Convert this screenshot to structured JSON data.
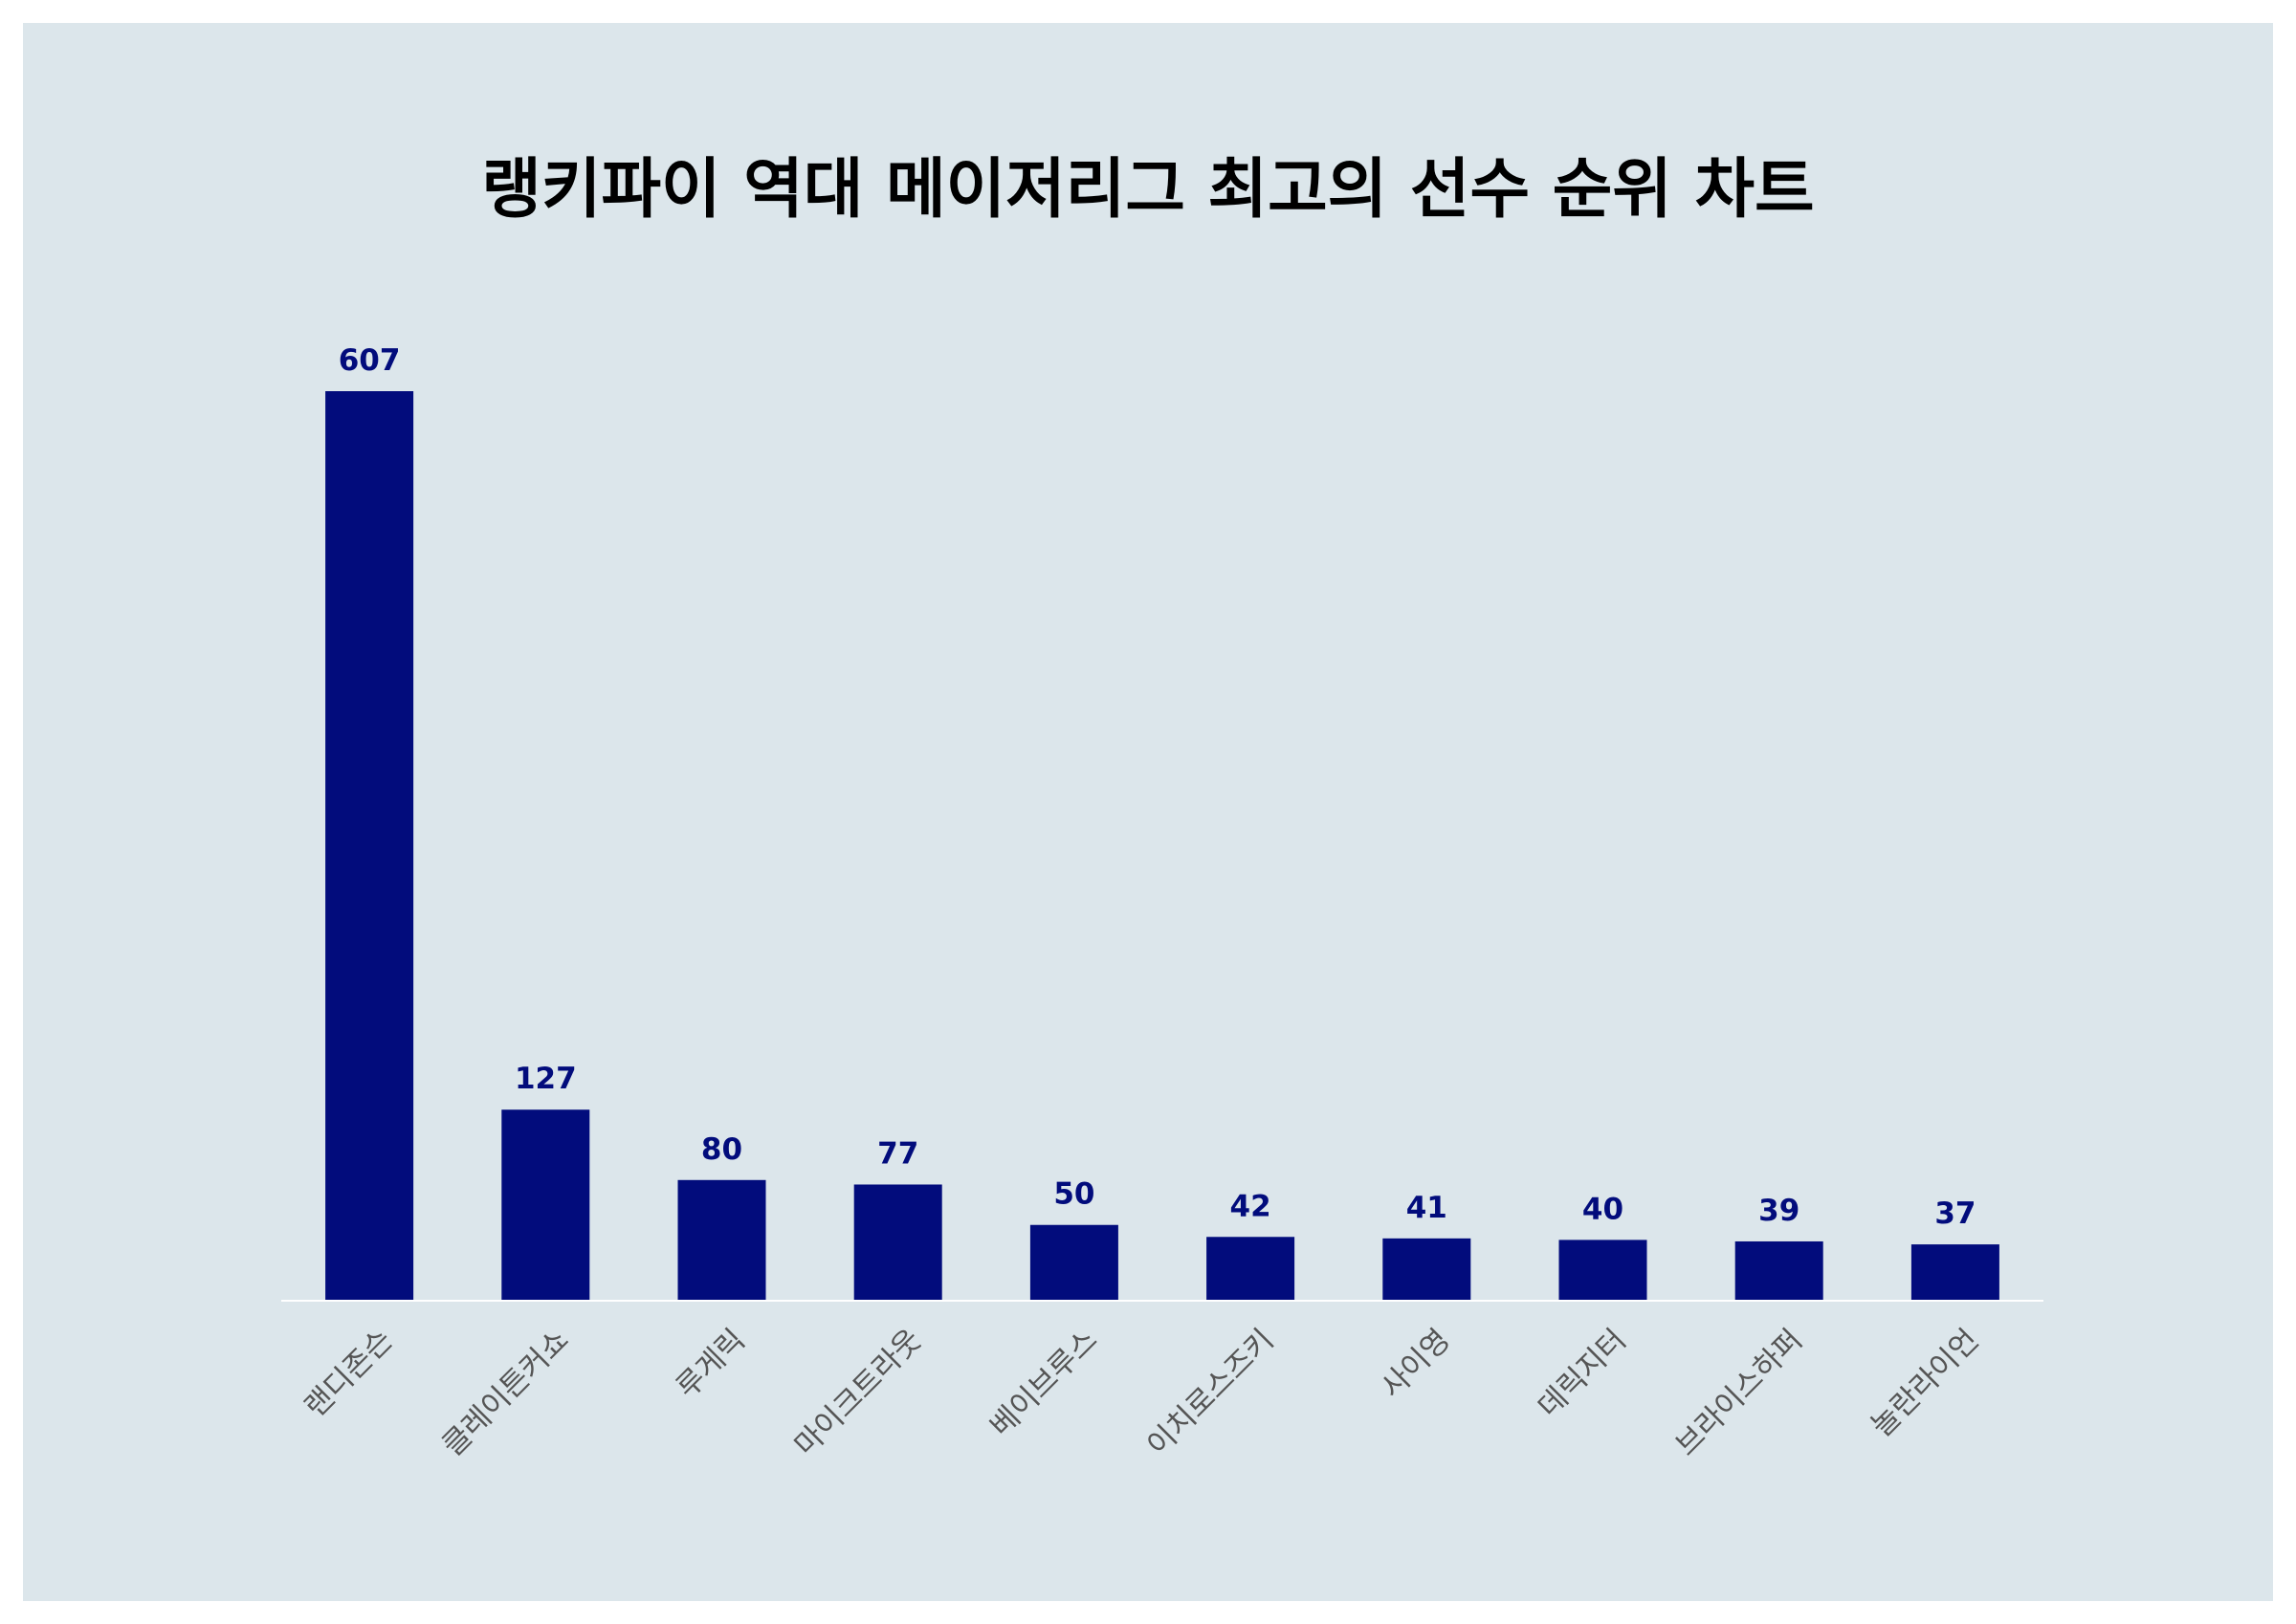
{
  "chart_data": {
    "type": "bar",
    "title": "랭키파이 역대 메이저리그 최고의 선수 순위 차트",
    "categories": [
      "랜디존슨",
      "클레이튼커쇼",
      "루게릭",
      "마이크트라웃",
      "베이브루스",
      "이치로스즈키",
      "사이영",
      "데릭지터",
      "브라이스하퍼",
      "놀란라이언"
    ],
    "values": [
      607,
      127,
      80,
      77,
      50,
      42,
      41,
      40,
      39,
      37
    ],
    "xlabel": "",
    "ylabel": "",
    "ylim": [
      0,
      607
    ],
    "grid": false,
    "legend": "none",
    "show_data_labels": true,
    "colors": {
      "bar": "#020c7c",
      "data_label": "#020c7c",
      "tick_label": "#555555",
      "axis_line": "#ffffff",
      "background": "#dce6eb",
      "title": "#000000"
    }
  }
}
